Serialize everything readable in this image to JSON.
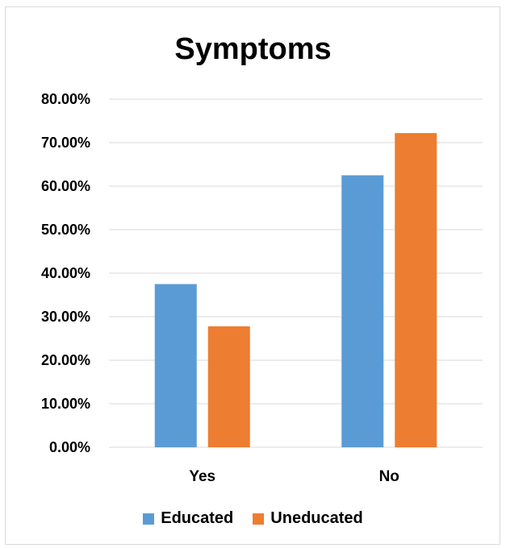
{
  "chart_data": {
    "type": "bar",
    "title": "Symptoms",
    "xlabel": "",
    "ylabel": "",
    "categories": [
      "Yes",
      "No"
    ],
    "series": [
      {
        "name": "Educated",
        "values": [
          37.5,
          62.5
        ],
        "color": "#5b9bd5"
      },
      {
        "name": "Uneducated",
        "values": [
          27.8,
          72.2
        ],
        "color": "#ed7d31"
      }
    ],
    "ylim": [
      0,
      80
    ],
    "yticks": [
      "0.00%",
      "10.00%",
      "20.00%",
      "30.00%",
      "40.00%",
      "50.00%",
      "60.00%",
      "70.00%",
      "80.00%"
    ],
    "grid": true,
    "legend": "bottom"
  }
}
